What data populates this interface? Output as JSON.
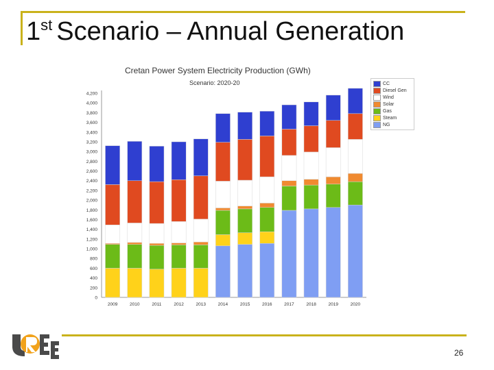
{
  "slide": {
    "title_sup": "st",
    "title_num": "1",
    "title_text": "Scenario – Annual Generation",
    "page_number": "26",
    "logo_text": "UREE"
  },
  "colors": {
    "CC": "#2f3fd0",
    "Diesel Gen": "#e04a20",
    "Wind": "#ffffff",
    "Solar": "#f08a30",
    "Gas": "#6cbb18",
    "Steam": "#ffd21a",
    "NG": "#7f9ef3",
    "accent": "#c9b21b"
  },
  "chart_data": {
    "type": "bar",
    "stacked": true,
    "title": "Cretan Power System Electricity Production (GWh)",
    "subtitle": "Scenario: 2020-20",
    "categories": [
      "2009",
      "2010",
      "2011",
      "2012",
      "2013",
      "2014",
      "2015",
      "2016",
      "2017",
      "2018",
      "2019",
      "2020"
    ],
    "y_ticks": [
      "0",
      "200",
      "400",
      "600",
      "800",
      "1,000",
      "1,200",
      "1,400",
      "1,600",
      "1,800",
      "2,000",
      "2,200",
      "2,400",
      "2,600",
      "2,800",
      "3,000",
      "3,200",
      "3,400",
      "3,600",
      "3,800",
      "4,000",
      "4,200"
    ],
    "ylim": [
      0,
      4200
    ],
    "grid": false,
    "legend_position": "top-right",
    "series": [
      {
        "name": "NG",
        "values": [
          0,
          0,
          0,
          0,
          0,
          1060,
          1090,
          1110,
          1790,
          1820,
          1850,
          1900
        ]
      },
      {
        "name": "Steam",
        "values": [
          600,
          600,
          580,
          600,
          600,
          230,
          240,
          240,
          0,
          0,
          0,
          0
        ]
      },
      {
        "name": "Gas",
        "values": [
          490,
          490,
          490,
          480,
          480,
          500,
          490,
          500,
          500,
          490,
          480,
          480
        ]
      },
      {
        "name": "Solar",
        "values": [
          20,
          40,
          40,
          40,
          60,
          50,
          60,
          90,
          110,
          120,
          150,
          170
        ]
      },
      {
        "name": "Wind",
        "values": [
          380,
          400,
          410,
          440,
          470,
          550,
          530,
          540,
          520,
          560,
          600,
          700
        ]
      },
      {
        "name": "Diesel Gen",
        "values": [
          830,
          870,
          860,
          860,
          890,
          800,
          840,
          840,
          540,
          540,
          560,
          530
        ]
      },
      {
        "name": "CC",
        "values": [
          800,
          810,
          730,
          780,
          760,
          590,
          560,
          510,
          500,
          490,
          520,
          520
        ]
      }
    ],
    "legend_order": [
      "CC",
      "Diesel Gen",
      "Wind",
      "Solar",
      "Gas",
      "Steam",
      "NG"
    ]
  }
}
